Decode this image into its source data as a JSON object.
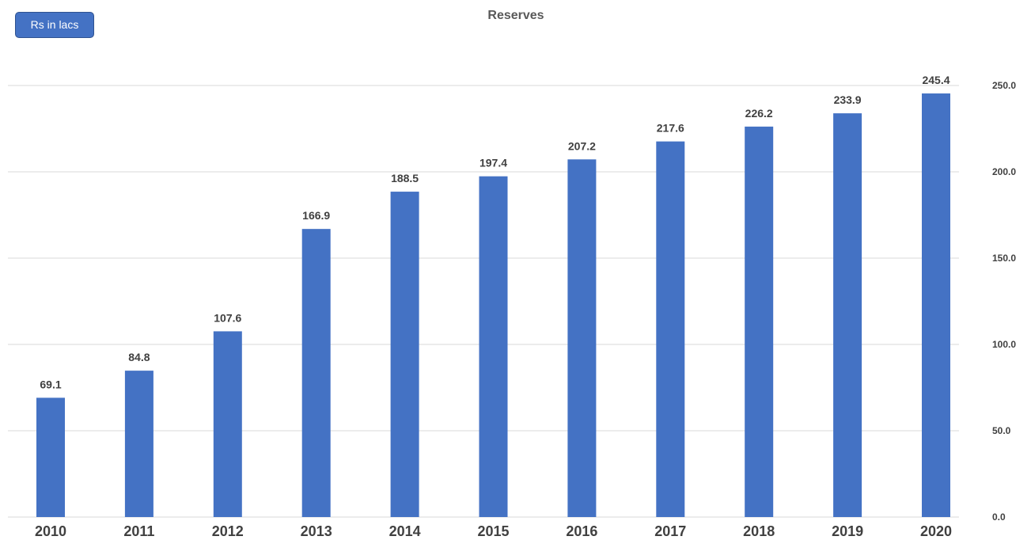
{
  "unit_badge": "Rs in lacs",
  "colors": {
    "bar": "#4472c4",
    "grid": "#d9d9d9",
    "text": "#404040",
    "badge": "#4472c4"
  },
  "chart_data": {
    "type": "bar",
    "title": "Reserves",
    "xlabel": "",
    "ylabel": "",
    "categories": [
      "2010",
      "2011",
      "2012",
      "2013",
      "2014",
      "2015",
      "2016",
      "2017",
      "2018",
      "2019",
      "2020"
    ],
    "values": [
      69.1,
      84.8,
      107.6,
      166.9,
      188.5,
      197.4,
      207.2,
      217.6,
      226.2,
      233.9,
      245.4
    ],
    "data_labels": [
      "69.1",
      "84.8",
      "107.6",
      "166.9",
      "188.5",
      "197.4",
      "207.2",
      "217.6",
      "226.2",
      "233.9",
      "245.4"
    ],
    "y_ticks": [
      0,
      50,
      100,
      150,
      200,
      250
    ],
    "y_tick_labels": [
      "0.0",
      "50.0",
      "100.0",
      "150.0",
      "200.0",
      "250.0"
    ],
    "ylim": [
      0,
      250
    ],
    "y_axis_side": "right",
    "grid": true,
    "legend": "none"
  }
}
